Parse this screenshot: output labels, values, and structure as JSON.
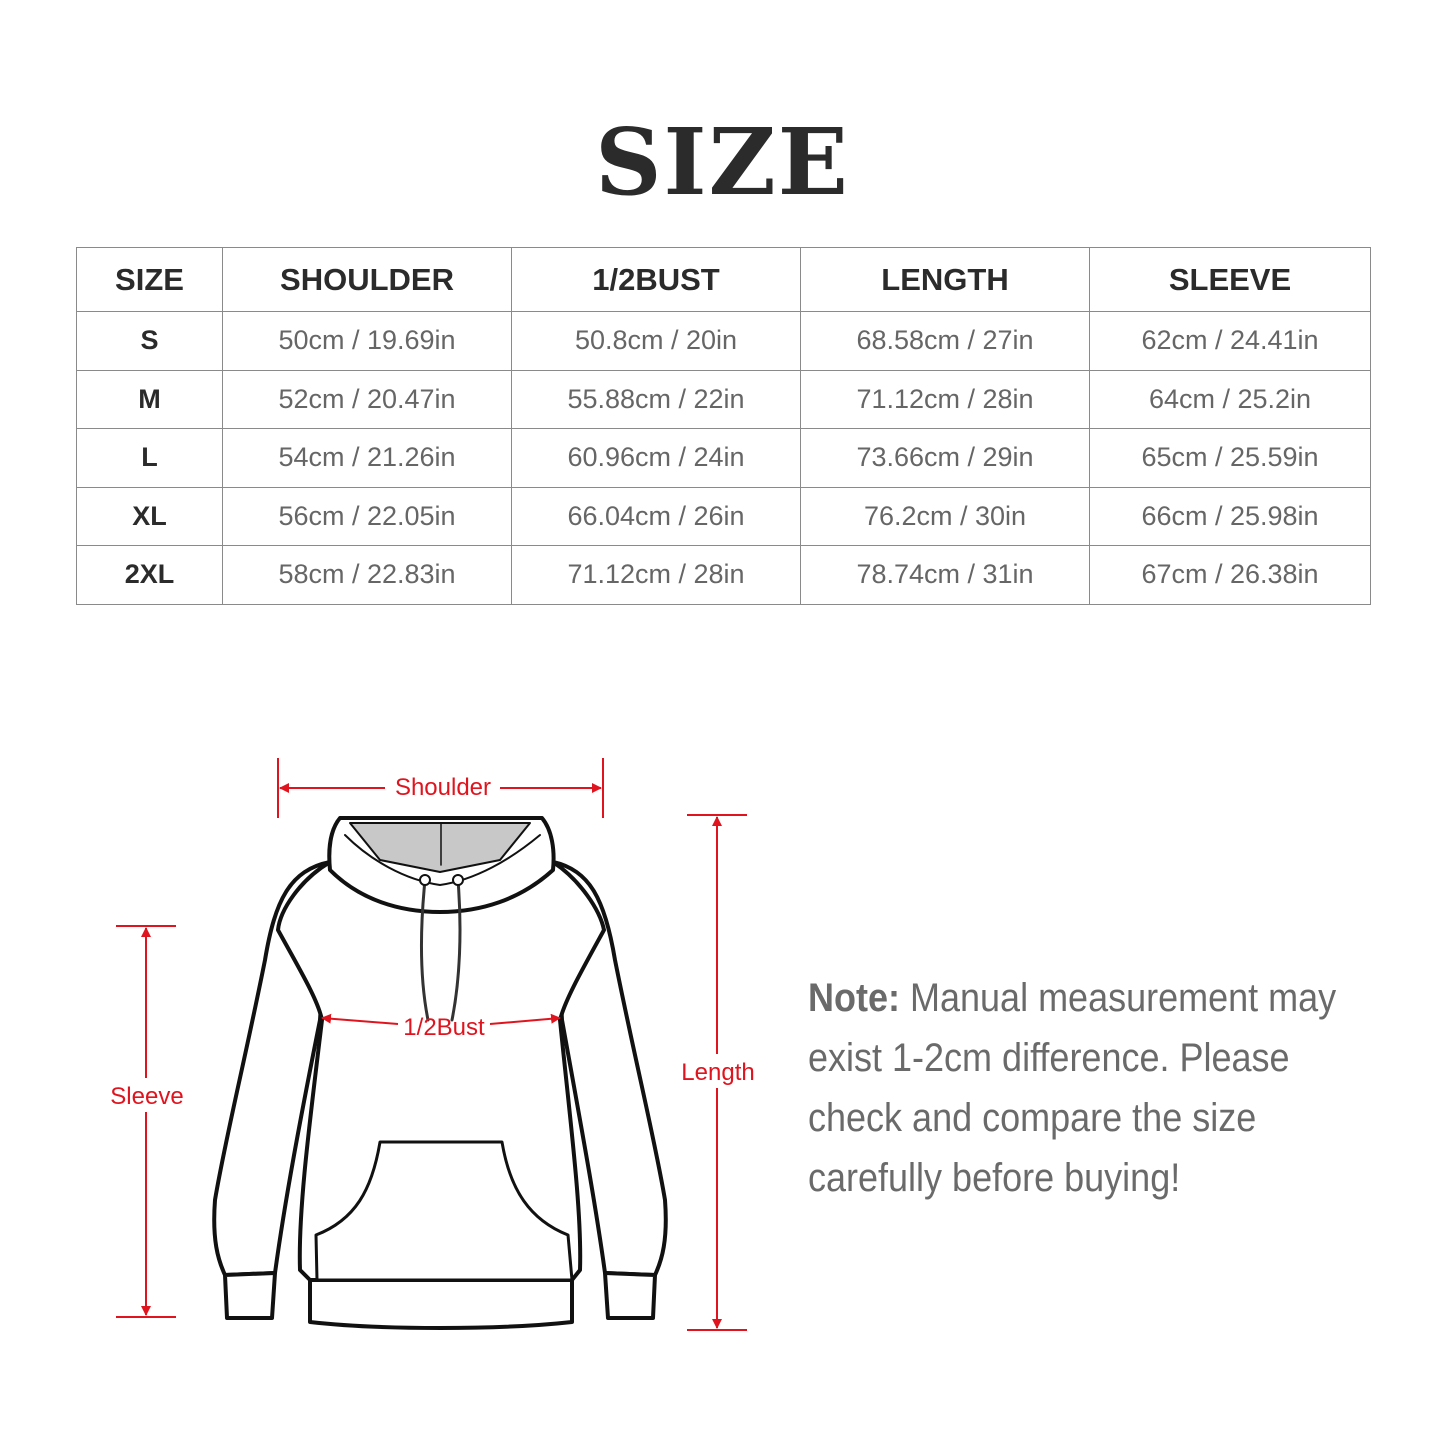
{
  "title": "SIZE",
  "table": {
    "headers": [
      "SIZE",
      "SHOULDER",
      "1/2BUST",
      "LENGTH",
      "SLEEVE"
    ],
    "rows": [
      [
        "S",
        "50cm / 19.69in",
        "50.8cm / 20in",
        "68.58cm / 27in",
        "62cm / 24.41in"
      ],
      [
        "M",
        "52cm / 20.47in",
        "55.88cm / 22in",
        "71.12cm / 28in",
        "64cm / 25.2in"
      ],
      [
        "L",
        "54cm / 21.26in",
        "60.96cm / 24in",
        "73.66cm / 29in",
        "65cm / 25.59in"
      ],
      [
        "XL",
        "56cm / 22.05in",
        "66.04cm / 26in",
        "76.2cm / 30in",
        "66cm / 25.98in"
      ],
      [
        "2XL",
        "58cm / 22.83in",
        "71.12cm / 28in",
        "78.74cm / 31in",
        "67cm / 26.38in"
      ]
    ]
  },
  "diagram": {
    "labels": {
      "shoulder": "Shoulder",
      "bust": "1/2Bust",
      "sleeve": "Sleeve",
      "length": "Length"
    },
    "accent_color": "#e0141e"
  },
  "note": {
    "label": "Note:",
    "text": " Manual measurement may exist 1-2cm difference. Please check and compare the size carefully before buying!"
  }
}
